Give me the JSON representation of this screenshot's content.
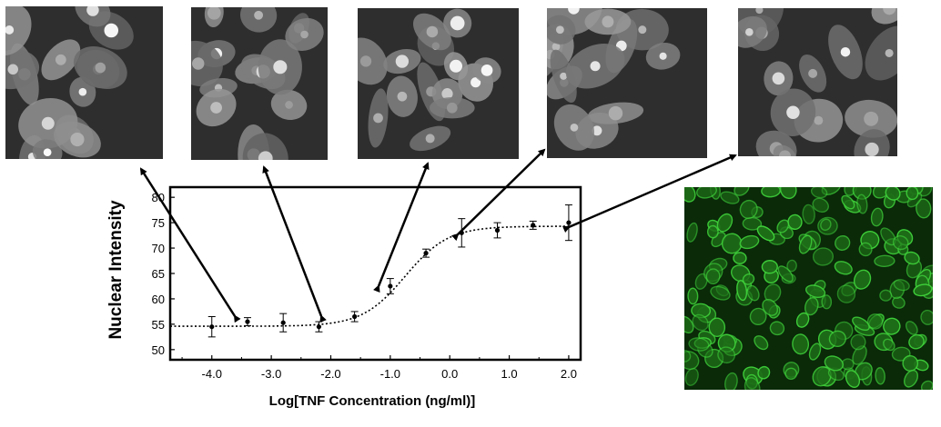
{
  "chart_data": {
    "type": "scatter",
    "xlabel": "Log[TNF Concentration (ng/ml)]",
    "ylabel": "Nuclear Intensity",
    "xlim": [
      -4.7,
      2.2
    ],
    "ylim": [
      48,
      82
    ],
    "xticks": [
      -4.0,
      -3.0,
      -2.0,
      -1.0,
      0.0,
      1.0,
      2.0
    ],
    "xtick_labels": [
      "-4.0",
      "-3.0",
      "-2.0",
      "-1.0",
      "0.0",
      "1.0",
      "2.0"
    ],
    "yticks": [
      50,
      55,
      60,
      65,
      70,
      75,
      80
    ],
    "ytick_labels": [
      "50",
      "55",
      "60",
      "65",
      "70",
      "75",
      "80"
    ],
    "grid": false,
    "series": [
      {
        "points": [
          {
            "x": -4.0,
            "y": 54.5,
            "err": 2.0
          },
          {
            "x": -3.4,
            "y": 55.5,
            "err": 0.8
          },
          {
            "x": -2.8,
            "y": 55.3,
            "err": 1.8
          },
          {
            "x": -2.2,
            "y": 54.5,
            "err": 1.0
          },
          {
            "x": -1.6,
            "y": 56.5,
            "err": 1.0
          },
          {
            "x": -1.0,
            "y": 62.5,
            "err": 1.5
          },
          {
            "x": -0.4,
            "y": 69.0,
            "err": 0.8
          },
          {
            "x": 0.2,
            "y": 73.0,
            "err": 2.8
          },
          {
            "x": 0.8,
            "y": 73.5,
            "err": 1.5
          },
          {
            "x": 1.4,
            "y": 74.5,
            "err": 0.8
          },
          {
            "x": 2.0,
            "y": 75.0,
            "err": 3.5
          }
        ]
      }
    ],
    "fit_curve": {
      "style": "dotted",
      "bottom": 54.6,
      "top": 74.3,
      "ec50_log": -0.75,
      "hill": 1.2
    }
  },
  "images": [
    {
      "name": "micrograph-1",
      "style": "grayscale"
    },
    {
      "name": "micrograph-2",
      "style": "grayscale"
    },
    {
      "name": "micrograph-3",
      "style": "grayscale"
    },
    {
      "name": "micrograph-4",
      "style": "grayscale"
    },
    {
      "name": "micrograph-5",
      "style": "grayscale"
    },
    {
      "name": "micrograph-green",
      "style": "green-fluorescence"
    }
  ],
  "colors": {
    "axis": "#000000",
    "marker": "#000000",
    "micrograph_bg": "#2e2e2e",
    "fluorescence_bg": "#0a2a08",
    "fluorescence_cell": "#3fd13a"
  }
}
